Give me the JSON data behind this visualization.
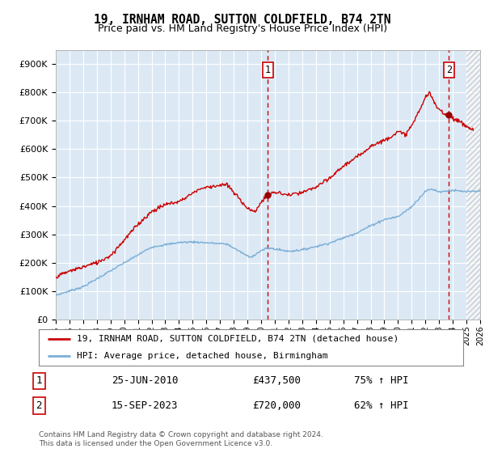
{
  "title": "19, IRNHAM ROAD, SUTTON COLDFIELD, B74 2TN",
  "subtitle": "Price paid vs. HM Land Registry's House Price Index (HPI)",
  "ylim": [
    0,
    950000
  ],
  "yticks": [
    0,
    100000,
    200000,
    300000,
    400000,
    500000,
    600000,
    700000,
    800000,
    900000
  ],
  "ytick_labels": [
    "£0",
    "£100K",
    "£200K",
    "£300K",
    "£400K",
    "£500K",
    "£600K",
    "£700K",
    "£800K",
    "£900K"
  ],
  "xmin_year": 1995,
  "xmax_year": 2026,
  "xticks": [
    1995,
    1996,
    1997,
    1998,
    1999,
    2000,
    2001,
    2002,
    2003,
    2004,
    2005,
    2006,
    2007,
    2008,
    2009,
    2010,
    2011,
    2012,
    2013,
    2014,
    2015,
    2016,
    2017,
    2018,
    2019,
    2020,
    2021,
    2022,
    2023,
    2024,
    2025,
    2026
  ],
  "background_color": "#dce9f5",
  "grid_color": "#ffffff",
  "house_line_color": "#cc0000",
  "hpi_line_color": "#7aaed6",
  "purchase1_date": 2010.48,
  "purchase1_price": 437500,
  "purchase2_date": 2023.71,
  "purchase2_price": 720000,
  "vline_color": "#cc0000",
  "marker_color": "#990000",
  "legend_house": "19, IRNHAM ROAD, SUTTON COLDFIELD, B74 2TN (detached house)",
  "legend_hpi": "HPI: Average price, detached house, Birmingham",
  "table_row1": [
    "1",
    "25-JUN-2010",
    "£437,500",
    "75% ↑ HPI"
  ],
  "table_row2": [
    "2",
    "15-SEP-2023",
    "£720,000",
    "62% ↑ HPI"
  ],
  "footnote": "Contains HM Land Registry data © Crown copyright and database right 2024.\nThis data is licensed under the Open Government Licence v3.0.",
  "title_fontsize": 10.5,
  "subtitle_fontsize": 9
}
